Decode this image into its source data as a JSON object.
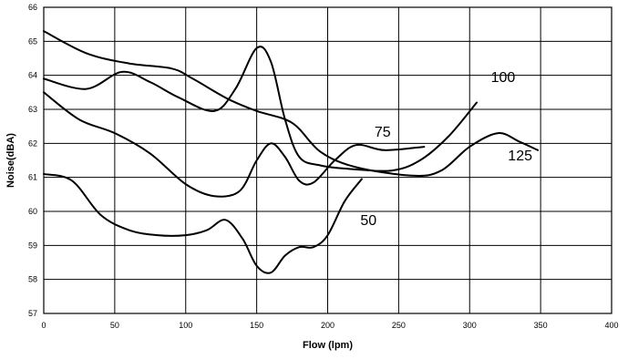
{
  "chart_data": {
    "type": "line",
    "title": "",
    "xlabel": "Flow (lpm)",
    "ylabel": "Noise(dBA)",
    "xlim": [
      0,
      400
    ],
    "ylim": [
      57,
      66
    ],
    "x_ticks": [
      0,
      50,
      100,
      150,
      200,
      250,
      300,
      350,
      400
    ],
    "y_ticks": [
      57,
      58,
      59,
      60,
      61,
      62,
      63,
      64,
      65,
      66
    ],
    "x_tick_labels": [
      "0",
      "50",
      "100",
      "150",
      "200",
      "250",
      "300",
      "350",
      "400"
    ],
    "y_tick_labels": [
      "57",
      "58",
      "59",
      "60",
      "61",
      "62",
      "63",
      "64",
      "65",
      "66"
    ],
    "grid": true,
    "legend": "none",
    "line_color": "#000000",
    "series": [
      {
        "name": "50",
        "label_anchor": [
          223,
          59.6
        ],
        "points": [
          [
            0,
            61.1
          ],
          [
            20,
            60.9
          ],
          [
            40,
            59.9
          ],
          [
            60,
            59.45
          ],
          [
            80,
            59.3
          ],
          [
            100,
            59.3
          ],
          [
            115,
            59.45
          ],
          [
            128,
            59.75
          ],
          [
            140,
            59.2
          ],
          [
            150,
            58.4
          ],
          [
            160,
            58.2
          ],
          [
            170,
            58.7
          ],
          [
            180,
            58.95
          ],
          [
            190,
            58.95
          ],
          [
            200,
            59.3
          ],
          [
            212,
            60.3
          ],
          [
            224,
            60.95
          ]
        ]
      },
      {
        "name": "75",
        "label_anchor": [
          233,
          62.2
        ],
        "points": [
          [
            0,
            63.5
          ],
          [
            25,
            62.7
          ],
          [
            50,
            62.3
          ],
          [
            75,
            61.7
          ],
          [
            100,
            60.8
          ],
          [
            120,
            60.45
          ],
          [
            138,
            60.6
          ],
          [
            150,
            61.5
          ],
          [
            160,
            62.0
          ],
          [
            170,
            61.6
          ],
          [
            180,
            60.9
          ],
          [
            190,
            60.85
          ],
          [
            205,
            61.5
          ],
          [
            220,
            61.95
          ],
          [
            240,
            61.8
          ],
          [
            268,
            61.9
          ]
        ]
      },
      {
        "name": "100",
        "label_anchor": [
          315,
          63.8
        ],
        "points": [
          [
            0,
            63.9
          ],
          [
            30,
            63.6
          ],
          [
            55,
            64.1
          ],
          [
            75,
            63.8
          ],
          [
            95,
            63.35
          ],
          [
            120,
            62.95
          ],
          [
            135,
            63.6
          ],
          [
            150,
            64.8
          ],
          [
            160,
            64.4
          ],
          [
            170,
            62.7
          ],
          [
            180,
            61.6
          ],
          [
            195,
            61.35
          ],
          [
            215,
            61.25
          ],
          [
            245,
            61.2
          ],
          [
            265,
            61.5
          ],
          [
            285,
            62.2
          ],
          [
            305,
            63.2
          ]
        ]
      },
      {
        "name": "125",
        "label_anchor": [
          327,
          61.5
        ],
        "points": [
          [
            0,
            65.3
          ],
          [
            30,
            64.65
          ],
          [
            60,
            64.35
          ],
          [
            90,
            64.2
          ],
          [
            105,
            63.9
          ],
          [
            130,
            63.3
          ],
          [
            150,
            62.95
          ],
          [
            175,
            62.6
          ],
          [
            195,
            61.75
          ],
          [
            220,
            61.3
          ],
          [
            260,
            61.05
          ],
          [
            280,
            61.2
          ],
          [
            300,
            61.9
          ],
          [
            320,
            62.3
          ],
          [
            335,
            62.05
          ],
          [
            348,
            61.8
          ]
        ]
      }
    ]
  }
}
